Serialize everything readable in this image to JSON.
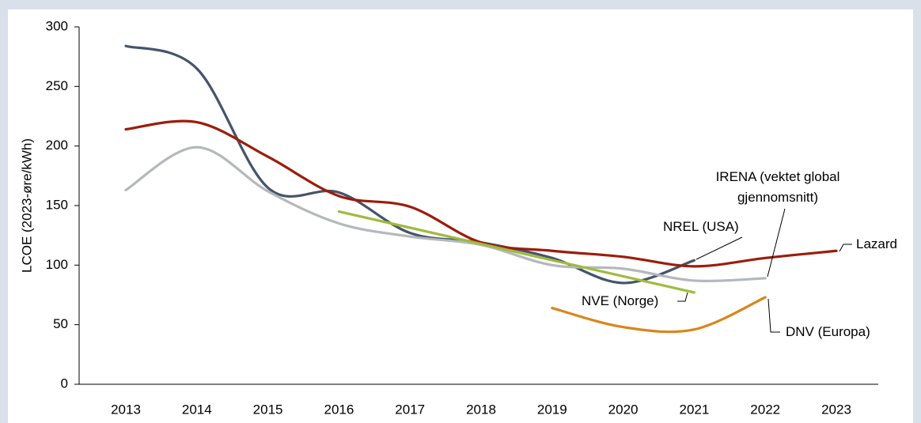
{
  "chart_data": {
    "type": "line",
    "y_label": "LCOE (2023-øre/kWh)",
    "categories": [
      "2013",
      "2014",
      "2015",
      "2016",
      "2017",
      "2018",
      "2019",
      "2020",
      "2021",
      "2022",
      "2023"
    ],
    "series": [
      {
        "name": "NREL (USA)",
        "color": "#44546a",
        "values": [
          284,
          265,
          165,
          161,
          127,
          119,
          106,
          85,
          104,
          null,
          null
        ]
      },
      {
        "name": "Lazard",
        "color": "#9c1c0b",
        "values": [
          214,
          220,
          191,
          158,
          149,
          119,
          112,
          107,
          99,
          106,
          112
        ]
      },
      {
        "name": "IRENA (vektet global gjennomsnitt)",
        "color": "#b4b8bd",
        "values": [
          163,
          199,
          162,
          135,
          124,
          117,
          100,
          97,
          87,
          89,
          null
        ]
      },
      {
        "name": "NVE (Norge)",
        "color": "#9fbb3d",
        "values": [
          null,
          null,
          null,
          145,
          null,
          null,
          null,
          null,
          77,
          null,
          null
        ]
      },
      {
        "name": "DNV (Europa)",
        "color": "#d9861c",
        "values": [
          null,
          null,
          null,
          null,
          null,
          null,
          64,
          48,
          46,
          73,
          null
        ]
      }
    ],
    "ylim": [
      0,
      300
    ],
    "yticks": [
      0,
      50,
      100,
      150,
      200,
      250,
      300
    ]
  }
}
